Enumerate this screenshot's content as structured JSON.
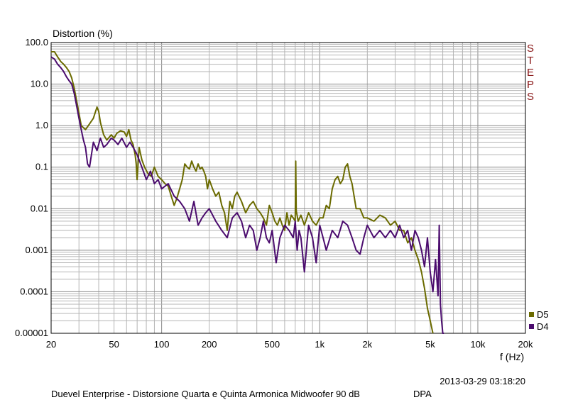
{
  "chart_data": {
    "type": "line",
    "title": "",
    "ylabel": "Distortion (%)",
    "xlabel": "f (Hz)",
    "x_scale": "log",
    "y_scale": "log",
    "xlim": [
      20,
      20000
    ],
    "ylim": [
      1e-05,
      100
    ],
    "grid": true,
    "legend_position": "bottom-right",
    "x_tick_labels": [
      {
        "value": 20,
        "label": "20"
      },
      {
        "value": 50,
        "label": "50"
      },
      {
        "value": 100,
        "label": "100"
      },
      {
        "value": 200,
        "label": "200"
      },
      {
        "value": 500,
        "label": "500"
      },
      {
        "value": 1000,
        "label": "1k"
      },
      {
        "value": 2000,
        "label": "2k"
      },
      {
        "value": 5000,
        "label": "5k"
      },
      {
        "value": 10000,
        "label": "10k"
      },
      {
        "value": 20000,
        "label": "20k"
      }
    ],
    "y_tick_labels": [
      {
        "value": 100,
        "label": "100.0"
      },
      {
        "value": 10,
        "label": "10.0"
      },
      {
        "value": 1,
        "label": "1.0"
      },
      {
        "value": 0.1,
        "label": "0.1"
      },
      {
        "value": 0.01,
        "label": "0.01"
      },
      {
        "value": 0.001,
        "label": "0.001"
      },
      {
        "value": 0.0001,
        "label": "0.0001"
      },
      {
        "value": 1e-05,
        "label": "0.00001"
      }
    ],
    "series": [
      {
        "name": "D5",
        "color": "#6b6b00",
        "x": [
          20,
          21,
          22,
          23,
          24,
          25,
          26,
          27,
          28,
          29,
          30,
          31,
          33,
          35,
          37,
          39,
          40,
          41,
          43,
          45,
          48,
          50,
          52,
          55,
          58,
          60,
          62,
          64,
          66,
          68,
          69,
          70,
          72,
          75,
          78,
          82,
          86,
          90,
          95,
          100,
          105,
          110,
          115,
          120,
          125,
          130,
          135,
          140,
          145,
          150,
          155,
          160,
          165,
          170,
          175,
          180,
          185,
          190,
          195,
          200,
          210,
          220,
          230,
          240,
          250,
          260,
          270,
          280,
          290,
          300,
          320,
          340,
          360,
          380,
          400,
          420,
          440,
          460,
          480,
          500,
          520,
          540,
          560,
          580,
          600,
          620,
          640,
          660,
          680,
          700,
          705,
          710,
          730,
          760,
          800,
          850,
          900,
          950,
          1000,
          1050,
          1100,
          1150,
          1200,
          1250,
          1300,
          1350,
          1400,
          1450,
          1500,
          1550,
          1600,
          1700,
          1800,
          1900,
          2000,
          2200,
          2400,
          2600,
          2800,
          3000,
          3200,
          3400,
          3600,
          3800,
          4000,
          4200,
          4400,
          4600,
          4800,
          5000,
          5200
        ],
        "y": [
          60,
          60,
          45,
          35,
          30,
          25,
          20,
          14,
          8,
          4,
          2,
          1.0,
          0.8,
          1.1,
          1.5,
          2.8,
          2.2,
          1.2,
          0.6,
          0.45,
          0.6,
          0.5,
          0.65,
          0.75,
          0.7,
          0.55,
          0.8,
          0.45,
          0.35,
          0.2,
          0.12,
          0.05,
          0.3,
          0.15,
          0.1,
          0.07,
          0.06,
          0.1,
          0.06,
          0.05,
          0.04,
          0.035,
          0.02,
          0.012,
          0.018,
          0.03,
          0.05,
          0.12,
          0.1,
          0.09,
          0.14,
          0.1,
          0.08,
          0.12,
          0.09,
          0.1,
          0.08,
          0.06,
          0.03,
          0.05,
          0.03,
          0.02,
          0.025,
          0.012,
          0.008,
          0.003,
          0.015,
          0.01,
          0.02,
          0.025,
          0.015,
          0.008,
          0.012,
          0.015,
          0.01,
          0.008,
          0.006,
          0.004,
          0.012,
          0.008,
          0.005,
          0.004,
          0.006,
          0.004,
          0.003,
          0.008,
          0.004,
          0.007,
          0.006,
          0.005,
          0.14,
          0.009,
          0.005,
          0.007,
          0.004,
          0.008,
          0.005,
          0.004,
          0.006,
          0.006,
          0.012,
          0.01,
          0.03,
          0.05,
          0.06,
          0.04,
          0.05,
          0.1,
          0.12,
          0.06,
          0.04,
          0.01,
          0.01,
          0.006,
          0.006,
          0.005,
          0.007,
          0.006,
          0.004,
          0.005,
          0.003,
          0.003,
          0.0015,
          0.002,
          0.001,
          0.0006,
          0.0003,
          0.00012,
          4e-05,
          2e-05,
          1e-05
        ]
      },
      {
        "name": "D4",
        "color": "#4b0c6e",
        "x": [
          20,
          21,
          22,
          23,
          24,
          25,
          26,
          27,
          28,
          29,
          30,
          31,
          32,
          33,
          34,
          35,
          37,
          39,
          41,
          43,
          45,
          48,
          50,
          53,
          56,
          60,
          63,
          66,
          70,
          75,
          80,
          85,
          90,
          95,
          100,
          110,
          120,
          130,
          140,
          150,
          160,
          170,
          180,
          190,
          200,
          220,
          240,
          260,
          280,
          300,
          320,
          340,
          360,
          380,
          400,
          420,
          440,
          460,
          480,
          500,
          530,
          560,
          600,
          640,
          680,
          700,
          720,
          740,
          760,
          800,
          850,
          900,
          950,
          1000,
          1050,
          1100,
          1200,
          1300,
          1400,
          1500,
          1600,
          1700,
          1800,
          1900,
          2000,
          2200,
          2400,
          2600,
          2800,
          3000,
          3200,
          3400,
          3600,
          3800,
          4000,
          4200,
          4400,
          4600,
          4800,
          5000,
          5200,
          5400,
          5600,
          5700,
          5800,
          5900,
          6000,
          6100
        ],
        "y": [
          45,
          40,
          30,
          25,
          20,
          15,
          12,
          10,
          6,
          3,
          1.5,
          0.8,
          0.45,
          0.3,
          0.12,
          0.1,
          0.4,
          0.25,
          0.5,
          0.3,
          0.35,
          0.5,
          0.45,
          0.35,
          0.5,
          0.3,
          0.4,
          0.3,
          0.2,
          0.1,
          0.05,
          0.08,
          0.04,
          0.05,
          0.03,
          0.04,
          0.02,
          0.015,
          0.01,
          0.005,
          0.015,
          0.004,
          0.006,
          0.008,
          0.01,
          0.005,
          0.003,
          0.002,
          0.006,
          0.008,
          0.005,
          0.002,
          0.004,
          0.003,
          0.001,
          0.002,
          0.005,
          0.002,
          0.0015,
          0.003,
          0.0005,
          0.002,
          0.004,
          0.003,
          0.002,
          0.005,
          0.001,
          0.003,
          0.002,
          0.0003,
          0.004,
          0.002,
          0.0005,
          0.004,
          0.002,
          0.001,
          0.003,
          0.002,
          0.005,
          0.004,
          0.002,
          0.001,
          0.0008,
          0.002,
          0.004,
          0.002,
          0.003,
          0.002,
          0.003,
          0.002,
          0.004,
          0.002,
          0.003,
          0.001,
          0.003,
          0.002,
          0.001,
          0.0004,
          0.002,
          0.0003,
          0.0001,
          0.0006,
          8e-05,
          0.004,
          5e-05,
          2e-05,
          1e-05,
          1e-05
        ]
      }
    ],
    "legend": [
      "D5",
      "D4"
    ],
    "side_label": "STEPS",
    "timestamp": "2013-03-29 03:18:20",
    "footer_title": "Duevel Enterprise - Distorsione Quarta e Quinta Armonica Midwoofer 90 dB",
    "footer_tag": "DPA"
  }
}
